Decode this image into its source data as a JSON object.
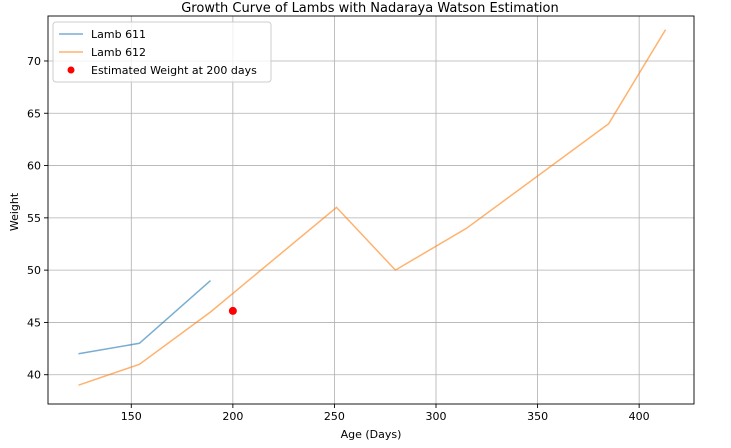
{
  "chart_data": {
    "type": "line",
    "title": "Growth Curve of Lambs with Nadaraya Watson Estimation",
    "xlabel": "Age (Days)",
    "ylabel": "Weight",
    "xlim": [
      109,
      427
    ],
    "ylim": [
      37.2,
      74.3
    ],
    "xticks": [
      150,
      200,
      250,
      300,
      350,
      400
    ],
    "yticks": [
      40,
      45,
      50,
      55,
      60,
      65,
      70
    ],
    "grid": true,
    "legend_position": "top-left",
    "series": [
      {
        "name": "Lamb 611",
        "kind": "line",
        "color": "#1f77b4",
        "x": [
          124,
          154,
          189
        ],
        "y": [
          42,
          43,
          49
        ]
      },
      {
        "name": "Lamb 612",
        "kind": "line",
        "color": "#ff7f0e",
        "x": [
          124,
          154,
          189,
          251,
          280,
          315,
          385,
          413
        ],
        "y": [
          39,
          41,
          46,
          56,
          50,
          54,
          64,
          73
        ]
      },
      {
        "name": "Estimated Weight at 200 days",
        "kind": "point",
        "color": "#ff0000",
        "x": [
          200
        ],
        "y": [
          46.1
        ]
      }
    ]
  }
}
